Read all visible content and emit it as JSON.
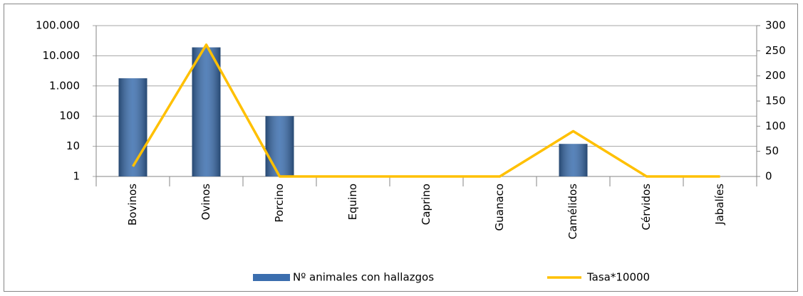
{
  "chart_data": {
    "type": "bar-line",
    "categories": [
      "Bovinos",
      "Ovinos",
      "Porcino",
      "Equino",
      "Caprino",
      "Guanaco",
      "Camélidos",
      "Cérvidos",
      "Jabalíes"
    ],
    "series": [
      {
        "name": "Nº animales con hallazgos",
        "type": "bar",
        "color": "#3b6eae",
        "values": [
          1800,
          19000,
          100,
          null,
          null,
          null,
          12,
          null,
          null
        ]
      },
      {
        "name": "Tasa*10000",
        "type": "line",
        "axis": "y2",
        "color": "#ffc000",
        "values": [
          20,
          262,
          0,
          0,
          0,
          0,
          90,
          0,
          0
        ]
      }
    ],
    "ylim": [
      1,
      100000
    ],
    "log_y": true,
    "yticks": [
      1,
      10,
      100,
      {
        "value": 1000,
        "label": "1.000"
      },
      {
        "value": 10000,
        "label": "10.000"
      },
      {
        "value": 100000,
        "label": "100.000"
      }
    ],
    "y2lim": [
      0,
      300
    ],
    "y2ticks": [
      0,
      50,
      100,
      150,
      200,
      250,
      300
    ],
    "grid": true,
    "legend": "bottom"
  }
}
